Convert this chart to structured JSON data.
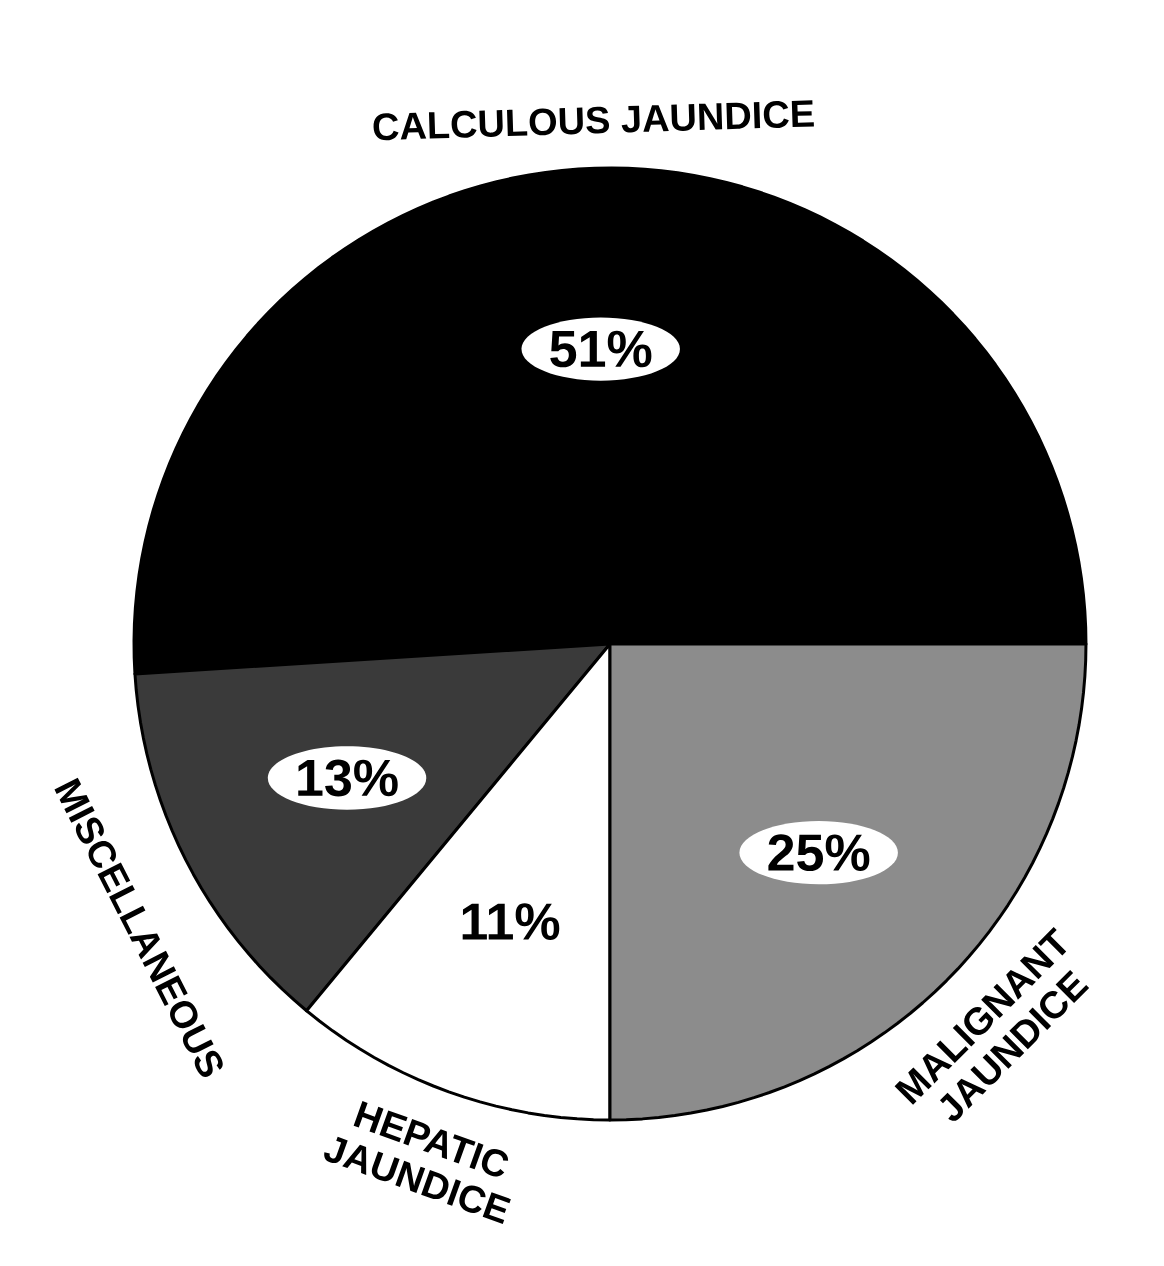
{
  "chart_data": {
    "type": "pie",
    "categories": [
      "CALCULOUS JAUNDICE",
      "MISCELLANEOUS",
      "HEPATIC JAUNDICE",
      "MALIGNANT JAUNDICE"
    ],
    "values": [
      51,
      13,
      11,
      25
    ],
    "colors": [
      "#000000",
      "#3a3a3a",
      "#ffffff",
      "#8c8c8c"
    ],
    "value_labels": [
      "51%",
      "13%",
      "11%",
      "25%"
    ],
    "legend": false
  }
}
